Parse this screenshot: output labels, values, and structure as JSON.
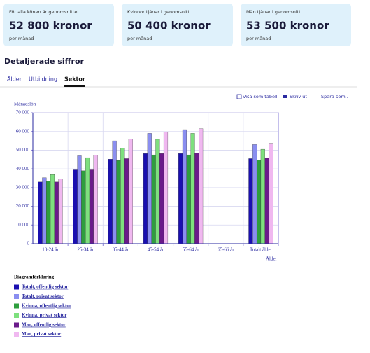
{
  "cards": [
    {
      "label": "För alla könen är genomsnittet",
      "value": "52 800 kronor",
      "unit": "per månad"
    },
    {
      "label": "Kvinnor tjänar i genomsnitt",
      "value": "50 400 kronor",
      "unit": "per månad"
    },
    {
      "label": "Män tjänar i genomsnitt",
      "value": "53 500 kronor",
      "unit": "per månad"
    }
  ],
  "section_title": "Detaljerade siffror",
  "tabs": [
    "Ålder",
    "Utbildning",
    "Sektor"
  ],
  "active_tab": 2,
  "actions": [
    "Visa som tabell",
    "Skriv ut",
    "Spara som.."
  ],
  "chart_data": {
    "type": "bar",
    "y_label": "Månadslön",
    "x_label": "Ålder",
    "legend_title": "Diagramförklaring",
    "grid": true,
    "categories": [
      "18-24 år",
      "25-34 år",
      "35-44 år",
      "45-54 år",
      "55-64 år",
      "65-66 år",
      "Totalt ålder"
    ],
    "ylim": [
      0,
      70000
    ],
    "yticks": [
      0,
      {
        "value": 10000,
        "label": "10 000"
      },
      {
        "value": 20000,
        "label": "20 000"
      },
      {
        "value": 30000,
        "label": "30 000"
      },
      {
        "value": 40000,
        "label": "40 000"
      },
      {
        "value": 50000,
        "label": "50 000"
      },
      {
        "value": 60000,
        "label": "60 000"
      },
      {
        "value": 70000,
        "label": "70 000"
      }
    ],
    "series": [
      {
        "name": "Totalt, offentlig sektor",
        "color": "#1a0fb0",
        "values": [
          33000,
          39500,
          45200,
          48200,
          48200,
          null,
          45500
        ]
      },
      {
        "name": "Totalt, privat sektor",
        "color": "#8a8ef0",
        "values": [
          35300,
          47000,
          55000,
          59000,
          61000,
          null,
          53000
        ]
      },
      {
        "name": "Kvinna, offentlig sektor",
        "color": "#2e9e3e",
        "values": [
          33500,
          39000,
          44500,
          47500,
          47500,
          null,
          44600
        ]
      },
      {
        "name": "Kvinna, privat sektor",
        "color": "#7ee07e",
        "values": [
          37000,
          46000,
          51200,
          55800,
          59000,
          null,
          50500
        ]
      },
      {
        "name": "Man, offentlig sektor",
        "color": "#6a1a8a",
        "values": [
          33000,
          39500,
          45500,
          48200,
          48500,
          null,
          45700
        ]
      },
      {
        "name": "Man, privat sektor",
        "color": "#f0b8f0",
        "values": [
          34700,
          47300,
          56000,
          59800,
          61500,
          null,
          53700
        ]
      }
    ]
  }
}
